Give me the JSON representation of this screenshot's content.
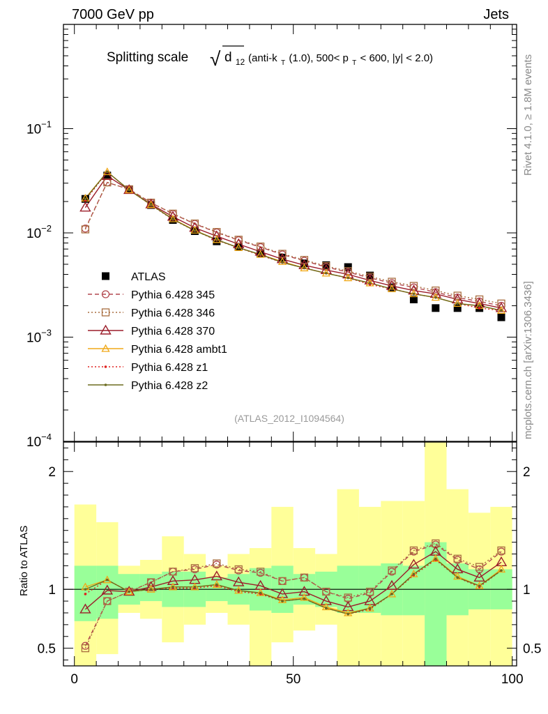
{
  "header": {
    "left": "7000 GeV pp",
    "right": "Jets"
  },
  "side_labels": {
    "rivet": "Rivet 4.1.0, ≥ 1.8M events",
    "mcplots": "mcplots.cern.ch [arXiv:1306.3436]"
  },
  "chart_data": [
    {
      "type": "line",
      "panel": "main",
      "title": "Splitting scale √d12 (anti-kT(1.0), 500< pT < 600, |y| < 2.0)",
      "title_parts": {
        "main": "Splitting scale",
        "sqrt_symbol": "√",
        "d": "d",
        "d_sub": "12",
        "p1": "(anti-k",
        "kt_sub": "T",
        "p2": "(1.0), 500< p",
        "pt_sub": "T",
        "p3": " < 600, |y| < 2.0)"
      },
      "watermark": "(ATLAS_2012_I1094564)",
      "yscale": "log",
      "ylim": [
        0.0001,
        1
      ],
      "xlim": [
        -2.5,
        101
      ],
      "ytick_labels": [
        {
          "value": 0.1,
          "base": "10",
          "exp": "−1"
        },
        {
          "value": 0.01,
          "base": "10",
          "exp": "−2"
        },
        {
          "value": 0.001,
          "base": "10",
          "exp": "−3"
        },
        {
          "value": 0.0001,
          "base": "10",
          "exp": "−4"
        }
      ],
      "x": [
        2.5,
        7.5,
        12.5,
        17.5,
        22.5,
        27.5,
        32.5,
        37.5,
        42.5,
        47.5,
        52.5,
        57.5,
        62.5,
        67.5,
        72.5,
        77.5,
        82.5,
        87.5,
        92.5,
        97.5
      ],
      "legend": {
        "position": "middle-left"
      },
      "series": [
        {
          "name": "ATLAS",
          "marker": "square",
          "color": "#000000",
          "line": "none",
          "values": [
            0.0212,
            0.0355,
            0.0262,
            0.0185,
            0.0133,
            0.0104,
            0.0083,
            0.0073,
            0.0064,
            0.0058,
            0.0051,
            0.0049,
            0.0047,
            0.0039,
            0.003,
            0.0023,
            0.0019,
            0.0019,
            0.0019,
            0.00155
          ]
        },
        {
          "name": "Pythia 6.428 345",
          "marker": "open-circle",
          "color": "#b2474e",
          "line": "dashed",
          "values": [
            0.011,
            0.0305,
            0.0262,
            0.0195,
            0.0152,
            0.0122,
            0.0101,
            0.0085,
            0.0073,
            0.0062,
            0.0054,
            0.0047,
            0.0042,
            0.0037,
            0.0033,
            0.003,
            0.0027,
            0.0024,
            0.0022,
            0.002
          ]
        },
        {
          "name": "Pythia 6.428 346",
          "marker": "open-square",
          "color": "#a86d3f",
          "line": "dotted",
          "values": [
            0.0108,
            0.0305,
            0.0262,
            0.0195,
            0.0153,
            0.0123,
            0.0102,
            0.0086,
            0.0074,
            0.0063,
            0.0055,
            0.0048,
            0.0043,
            0.0038,
            0.0034,
            0.0031,
            0.0028,
            0.0025,
            0.0023,
            0.0021
          ]
        },
        {
          "name": "Pythia 6.428 370",
          "marker": "open-triangle",
          "color": "#9b1d2a",
          "line": "solid",
          "values": [
            0.0175,
            0.0352,
            0.0258,
            0.0188,
            0.0143,
            0.0112,
            0.0093,
            0.0078,
            0.0066,
            0.0056,
            0.0049,
            0.0044,
            0.004,
            0.0035,
            0.0031,
            0.0028,
            0.0026,
            0.0023,
            0.0021,
            0.0019
          ]
        },
        {
          "name": "Pythia 6.428 ambt1",
          "marker": "open-triangle-small",
          "color": "#f0a818",
          "line": "solid",
          "values": [
            0.0215,
            0.0385,
            0.0258,
            0.0186,
            0.0136,
            0.0106,
            0.0086,
            0.0072,
            0.0062,
            0.0053,
            0.0046,
            0.0041,
            0.0037,
            0.0033,
            0.0029,
            0.0026,
            0.0024,
            0.0021,
            0.002,
            0.0018
          ]
        },
        {
          "name": "Pythia 6.428 z1",
          "marker": "dot",
          "color": "#e0201e",
          "line": "dotted",
          "values": [
            0.0205,
            0.0385,
            0.0258,
            0.0185,
            0.0134,
            0.0105,
            0.0085,
            0.0072,
            0.0061,
            0.0052,
            0.0046,
            0.0041,
            0.0037,
            0.0032,
            0.0029,
            0.0026,
            0.0024,
            0.0021,
            0.0019,
            0.0018
          ]
        },
        {
          "name": "Pythia 6.428 z2",
          "marker": "dot",
          "color": "#6b6b1e",
          "line": "solid",
          "values": [
            0.0212,
            0.0385,
            0.0258,
            0.0186,
            0.0135,
            0.0105,
            0.0086,
            0.0072,
            0.0062,
            0.0052,
            0.0046,
            0.0041,
            0.0037,
            0.0033,
            0.0029,
            0.0026,
            0.0024,
            0.0021,
            0.002,
            0.0018
          ]
        }
      ]
    },
    {
      "type": "line",
      "panel": "ratio",
      "ylabel": "Ratio to ATLAS",
      "ylim": [
        0.35,
        2.25
      ],
      "xlim": [
        -2.5,
        101
      ],
      "ytick_labels": [
        "2",
        "1",
        "0.5"
      ],
      "ytick_values": [
        2,
        1,
        0.5
      ],
      "xtick_labels": [
        "0",
        "50",
        "100"
      ],
      "xtick_values": [
        0,
        50,
        100
      ],
      "bin_edges": [
        0,
        5,
        10,
        15,
        20,
        25,
        30,
        35,
        40,
        45,
        50,
        55,
        60,
        65,
        70,
        75,
        80,
        85,
        90,
        95,
        100
      ],
      "band_green": [
        [
          0.73,
          1.2
        ],
        [
          0.75,
          1.2
        ],
        [
          0.87,
          1.13
        ],
        [
          0.9,
          1.13
        ],
        [
          0.85,
          1.15
        ],
        [
          0.85,
          1.15
        ],
        [
          0.9,
          1.1
        ],
        [
          0.87,
          1.13
        ],
        [
          0.82,
          1.18
        ],
        [
          0.8,
          1.2
        ],
        [
          0.87,
          1.13
        ],
        [
          0.85,
          1.15
        ],
        [
          0.8,
          1.2
        ],
        [
          0.8,
          1.2
        ],
        [
          0.78,
          1.22
        ],
        [
          0.78,
          1.2
        ],
        [
          0.35,
          1.4
        ],
        [
          0.78,
          1.22
        ],
        [
          0.83,
          1.17
        ],
        [
          0.83,
          1.17
        ]
      ],
      "band_yellow": [
        [
          0.35,
          1.72
        ],
        [
          0.45,
          1.57
        ],
        [
          0.8,
          1.2
        ],
        [
          0.75,
          1.25
        ],
        [
          0.55,
          1.45
        ],
        [
          0.7,
          1.3
        ],
        [
          0.8,
          1.2
        ],
        [
          0.7,
          1.3
        ],
        [
          0.35,
          1.35
        ],
        [
          0.55,
          1.7
        ],
        [
          0.65,
          1.35
        ],
        [
          0.7,
          1.3
        ],
        [
          0.35,
          1.85
        ],
        [
          0.35,
          1.7
        ],
        [
          0.35,
          1.75
        ],
        [
          0.35,
          1.75
        ],
        [
          0.35,
          2.25
        ],
        [
          0.35,
          1.85
        ],
        [
          0.35,
          1.65
        ],
        [
          0.35,
          1.7
        ]
      ],
      "series": [
        {
          "name": "Pythia 6.428 345",
          "values": [
            0.52,
            0.9,
            0.98,
            1.06,
            1.15,
            1.17,
            1.21,
            1.16,
            1.14,
            1.07,
            1.1,
            0.98,
            0.92,
            0.97,
            1.15,
            1.32,
            1.38,
            1.25,
            1.17,
            1.32
          ]
        },
        {
          "name": "Pythia 6.428 346",
          "values": [
            0.5,
            0.9,
            0.98,
            1.06,
            1.15,
            1.18,
            1.22,
            1.17,
            1.15,
            1.07,
            1.1,
            0.98,
            0.93,
            0.98,
            1.16,
            1.33,
            1.39,
            1.26,
            1.19,
            1.33
          ]
        },
        {
          "name": "Pythia 6.428 370",
          "values": [
            0.83,
            0.99,
            0.98,
            1.02,
            1.07,
            1.08,
            1.11,
            1.06,
            1.03,
            0.96,
            0.98,
            0.9,
            0.85,
            0.9,
            1.03,
            1.21,
            1.32,
            1.17,
            1.1,
            1.23
          ]
        },
        {
          "name": "Pythia 6.428 ambt1",
          "values": [
            1.02,
            1.08,
            0.98,
            1.0,
            1.02,
            1.02,
            1.04,
            0.99,
            0.97,
            0.91,
            0.93,
            0.85,
            0.8,
            0.84,
            0.96,
            1.13,
            1.26,
            1.11,
            1.03,
            1.17
          ]
        },
        {
          "name": "Pythia 6.428 z1",
          "values": [
            0.96,
            1.08,
            0.98,
            1.0,
            1.01,
            1.01,
            1.03,
            0.98,
            0.96,
            0.9,
            0.92,
            0.84,
            0.79,
            0.83,
            0.96,
            1.12,
            1.25,
            1.1,
            1.02,
            1.16
          ]
        },
        {
          "name": "Pythia 6.428 z2",
          "values": [
            1.0,
            1.08,
            0.98,
            1.0,
            1.02,
            1.02,
            1.04,
            0.99,
            0.97,
            0.9,
            0.92,
            0.84,
            0.79,
            0.84,
            0.96,
            1.13,
            1.26,
            1.1,
            1.03,
            1.16
          ]
        }
      ]
    }
  ]
}
